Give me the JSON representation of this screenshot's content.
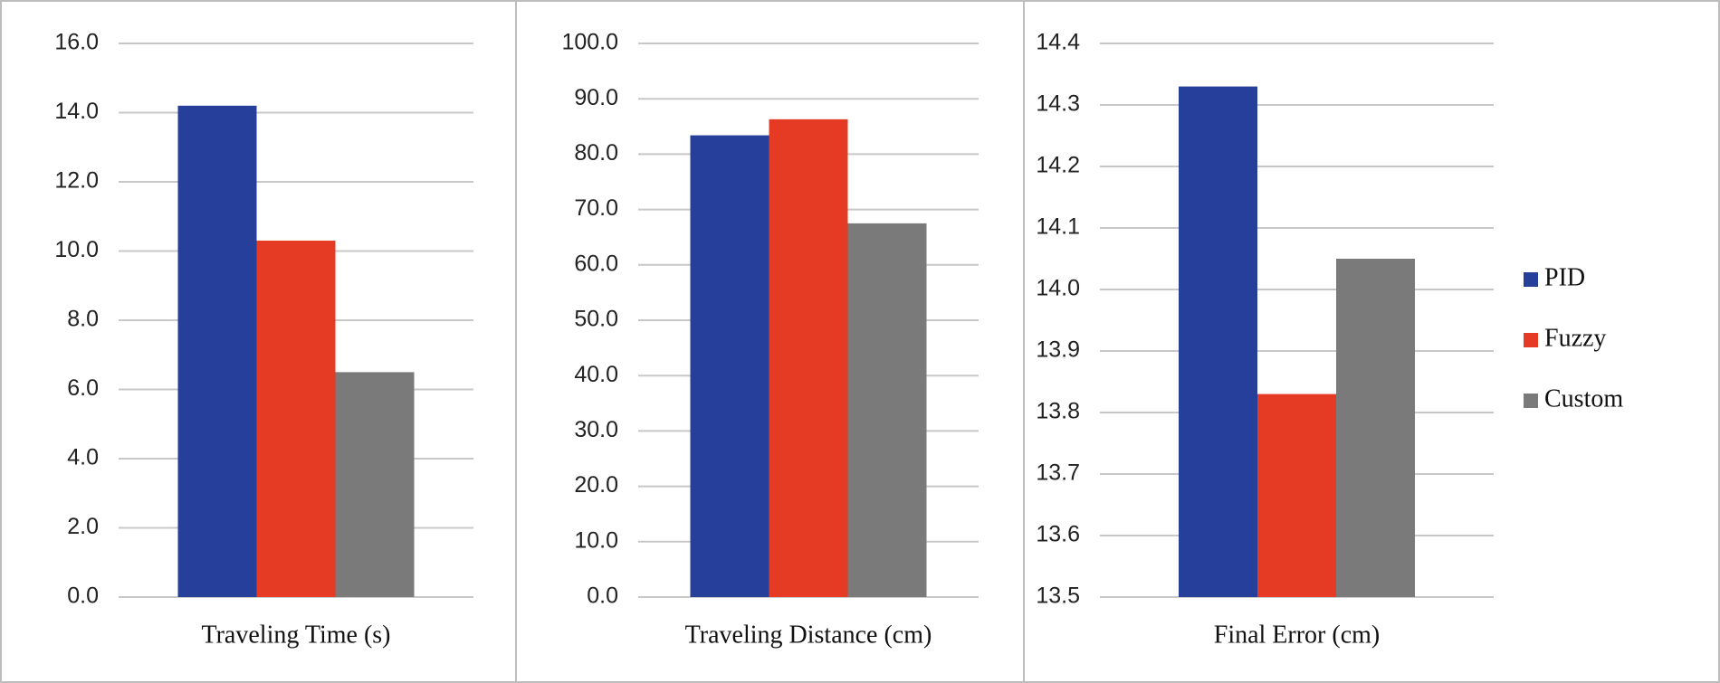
{
  "chart_data": [
    {
      "type": "bar",
      "categories": [
        "Traveling Time (s)"
      ],
      "series": [
        {
          "color": "#263f9a",
          "values": [
            14.2
          ]
        },
        {
          "color": "#e53a24",
          "values": [
            10.3
          ]
        },
        {
          "color": "#7a7a7a",
          "values": [
            6.5
          ]
        }
      ],
      "ylim": [
        0,
        16
      ],
      "yticks": [
        {
          "value": 0,
          "label": "0.0"
        },
        {
          "value": 2,
          "label": "2.0"
        },
        {
          "value": 4,
          "label": "4.0"
        },
        {
          "value": 6,
          "label": "6.0"
        },
        {
          "value": 8,
          "label": "8.0"
        },
        {
          "value": 10,
          "label": "10.0"
        },
        {
          "value": 12,
          "label": "12.0"
        },
        {
          "value": 14,
          "label": "14.0"
        },
        {
          "value": 16,
          "label": "16.0"
        }
      ],
      "grid": true
    },
    {
      "type": "bar",
      "categories": [
        "Traveling Distance (cm)"
      ],
      "series": [
        {
          "color": "#263f9a",
          "values": [
            83.4
          ]
        },
        {
          "color": "#e53a24",
          "values": [
            86.3
          ]
        },
        {
          "color": "#7a7a7a",
          "values": [
            67.5
          ]
        }
      ],
      "ylim": [
        0,
        100
      ],
      "yticks": [
        {
          "value": 0,
          "label": "0.0"
        },
        {
          "value": 10,
          "label": "10.0"
        },
        {
          "value": 20,
          "label": "20.0"
        },
        {
          "value": 30,
          "label": "30.0"
        },
        {
          "value": 40,
          "label": "40.0"
        },
        {
          "value": 50,
          "label": "50.0"
        },
        {
          "value": 60,
          "label": "60.0"
        },
        {
          "value": 70,
          "label": "70.0"
        },
        {
          "value": 80,
          "label": "80.0"
        },
        {
          "value": 90,
          "label": "90.0"
        },
        {
          "value": 100,
          "label": "100.0"
        }
      ],
      "grid": true
    },
    {
      "type": "bar",
      "categories": [
        "Final Error (cm)"
      ],
      "series": [
        {
          "name": "PID",
          "color": "#263f9a",
          "values": [
            14.33
          ]
        },
        {
          "name": "Fuzzy",
          "color": "#e53a24",
          "values": [
            13.83
          ]
        },
        {
          "name": "Custom",
          "color": "#7a7a7a",
          "values": [
            14.05
          ]
        }
      ],
      "ylim": [
        13.5,
        14.4
      ],
      "yticks": [
        13.5,
        13.6,
        13.7,
        13.8,
        13.9,
        {
          "value": 14,
          "label": "14.0"
        },
        14.1,
        14.2,
        14.3,
        14.4
      ],
      "grid": true,
      "legend": "right"
    }
  ]
}
